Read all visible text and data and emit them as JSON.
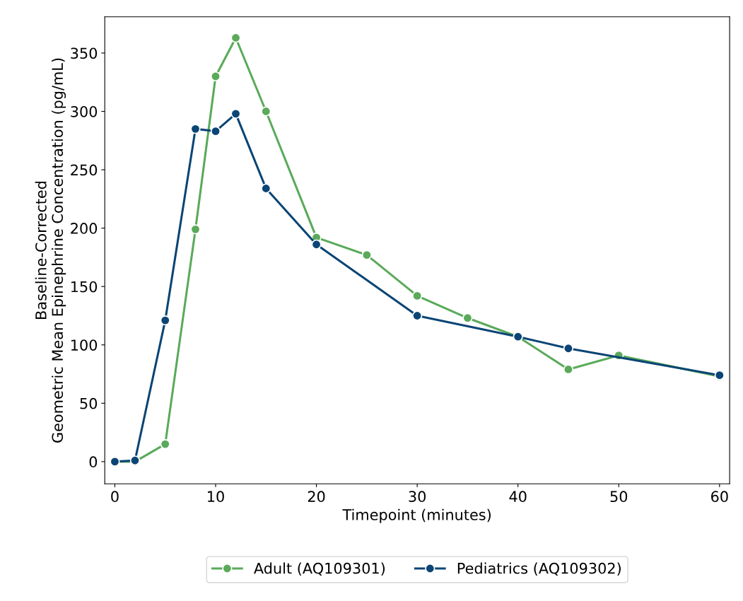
{
  "chart_data": {
    "type": "line",
    "xlabel": "Timepoint (minutes)",
    "ylabel": "Baseline-Corrected\nGeometric Mean Epinephrine Concentration (pg/mL)",
    "series": [
      {
        "name": "Adult (AQ109301)",
        "color": "#5aaa5a",
        "x": [
          0,
          2,
          5,
          8,
          10,
          12,
          15,
          20,
          25,
          30,
          35,
          40,
          45,
          50,
          60
        ],
        "values": [
          0,
          0,
          15,
          199,
          330,
          363,
          300,
          192,
          177,
          142,
          123,
          107,
          79,
          91,
          73
        ]
      },
      {
        "name": "Pediatrics (AQ109302)",
        "color": "#0b4575",
        "x": [
          0,
          2,
          5,
          8,
          10,
          12,
          15,
          20,
          30,
          40,
          45,
          60
        ],
        "values": [
          0,
          1,
          121,
          285,
          283,
          298,
          234,
          186,
          125,
          107,
          97,
          74
        ]
      }
    ],
    "xlim": [
      -1,
      61
    ],
    "xticks": [
      0,
      10,
      20,
      30,
      40,
      50,
      60
    ],
    "ylim": [
      -19,
      381
    ],
    "yticks": [
      0,
      50,
      100,
      150,
      200,
      250,
      300,
      350
    ],
    "grid": false,
    "legend": "bottom",
    "marker": "circle",
    "line_style": "solid"
  }
}
